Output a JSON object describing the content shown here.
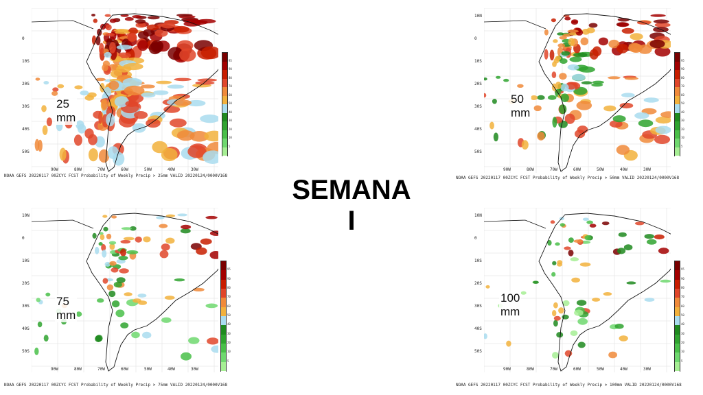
{
  "center": {
    "title_line1": "SEMANA",
    "title_line2": "I"
  },
  "colorbar": {
    "labels": [
      "95",
      "90",
      "80",
      "70",
      "60",
      "50",
      "40",
      "30",
      "20",
      "10",
      "5"
    ],
    "colors": [
      "#7a0000",
      "#a30000",
      "#c81e00",
      "#e0462a",
      "#f08a3a",
      "#f2b13c",
      "#a9dcef",
      "#1f8a1f",
      "#2fa32f",
      "#49bf49",
      "#6fd86f",
      "#a6ee94"
    ]
  },
  "panels": [
    {
      "threshold": "25 mm",
      "caption": "NOAA GEFS 20220117 00ZCYC FCST Probability of Weekly Precip > 25mm  VALID 20220124/0000V168",
      "lat_labels": [
        "0",
        "10S",
        "20S",
        "30S",
        "40S",
        "50S"
      ],
      "lon_labels": [
        "90W",
        "80W",
        "70W",
        "60W",
        "50W",
        "40W",
        "30W"
      ]
    },
    {
      "threshold": "50 mm",
      "caption": "NOAA GEFS 20220117 00ZCYC FCST Probability of Weekly Precip > 50mm  VALID 20220124/0000V168",
      "lat_labels": [
        "10N",
        "0",
        "10S",
        "20S",
        "30S",
        "40S",
        "50S"
      ],
      "lon_labels": [
        "90W",
        "80W",
        "70W",
        "60W",
        "50W",
        "40W",
        "30W"
      ]
    },
    {
      "threshold": "75 mm",
      "caption": "NOAA GEFS 20220117 00ZCYC FCST Probability of Weekly Precip > 75mm  VALID 20220124/0000V168",
      "lat_labels": [
        "10N",
        "0",
        "10S",
        "20S",
        "30S",
        "40S",
        "50S"
      ],
      "lon_labels": [
        "90W",
        "80W",
        "70W",
        "60W",
        "50W",
        "40W",
        "30W"
      ]
    },
    {
      "threshold": "100 mm",
      "caption": "NOAA GEFS 20220117 00ZCYC FCST Probability of Weekly Precip > 100mm  VALID 20220124/0000V168",
      "lat_labels": [
        "10N",
        "0",
        "10S",
        "20S",
        "30S",
        "40S",
        "50S"
      ],
      "lon_labels": [
        "90W",
        "80W",
        "70W",
        "60W",
        "50W",
        "40W",
        "30W"
      ]
    }
  ]
}
